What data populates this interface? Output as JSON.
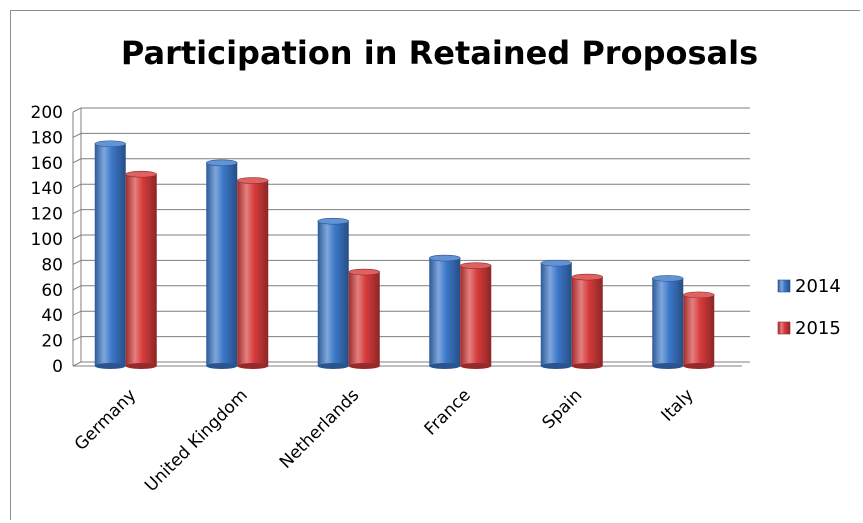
{
  "chart_data": {
    "type": "bar",
    "title": "Participation in Retained Proposals",
    "xlabel": "",
    "ylabel": "",
    "categories": [
      "Germany",
      "United Kingdom",
      "Netherlands",
      "France",
      "Spain",
      "Italy"
    ],
    "series": [
      {
        "name": "2014",
        "values": [
          175,
          160,
          114,
          85,
          81,
          69
        ],
        "color": "#3b78c9"
      },
      {
        "name": "2015",
        "values": [
          151,
          146,
          74,
          79,
          70,
          56
        ],
        "color": "#d63b3b"
      }
    ],
    "ylim": [
      0,
      200
    ],
    "yticks": [
      "0",
      "20",
      "40",
      "60",
      "80",
      "100",
      "120",
      "140",
      "160",
      "180",
      "200"
    ],
    "grid": true,
    "legend_position": "right",
    "style": "3d-cylinder-bars"
  }
}
